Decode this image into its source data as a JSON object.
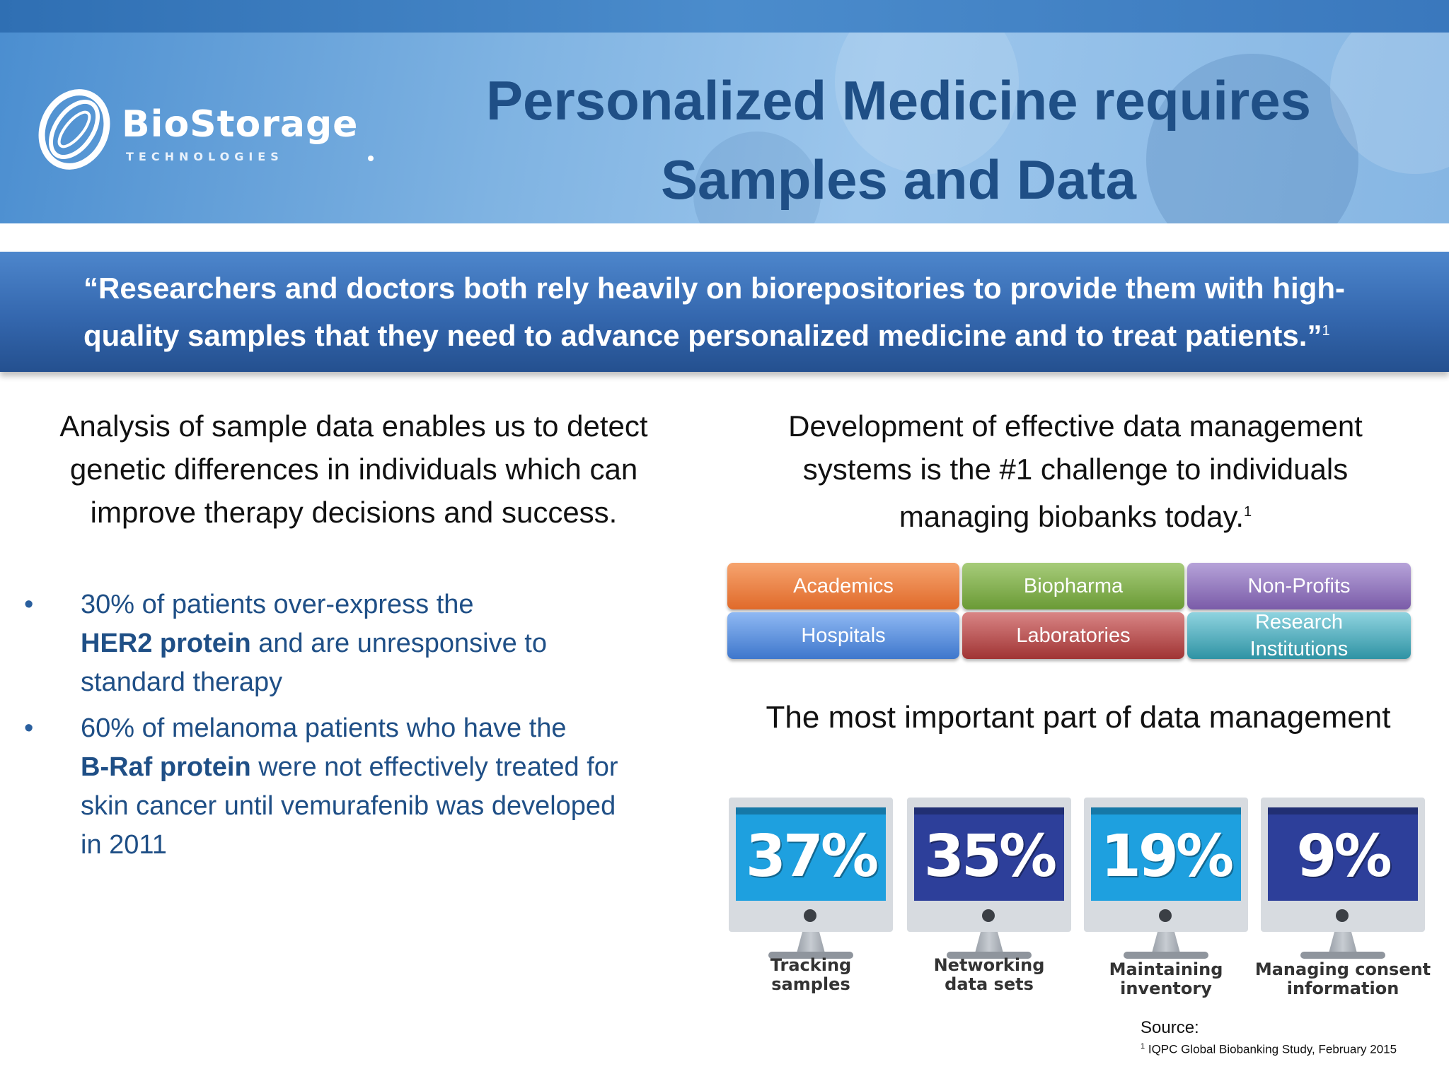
{
  "logo": {
    "name": "BioStorage",
    "sub": "TECHNOLOGIES"
  },
  "title": {
    "line1": "Personalized Medicine requires",
    "line2": "Samples and Data"
  },
  "quote": {
    "line1": "“Researchers and doctors both rely heavily on biorepositories to provide them with high-",
    "line2": "quality samples that they need to advance personalized medicine and to treat patients.”",
    "ref": "1"
  },
  "left": {
    "intro": {
      "line1": "Analysis of sample data enables us to detect",
      "line2": "genetic differences in individuals which can",
      "line3": "improve therapy decisions and success."
    },
    "bullet_marker": "•",
    "bullets": [
      {
        "l1": "30% of patients over-express the",
        "bold": "HER2 protein",
        "l2rest": " and are unresponsive to",
        "l3": "standard therapy"
      },
      {
        "l1": "60% of melanoma patients who have the",
        "bold": "B-Raf protein",
        "l2rest": " were not effectively treated for",
        "l3": "skin cancer until vemurafenib was developed",
        "l4": "in 2011"
      }
    ]
  },
  "right": {
    "intro": {
      "line1": "Development of effective data management",
      "line2": "systems is the #1 challenge to individuals",
      "line3": "managing biobanks today.",
      "ref": "1"
    },
    "groups": [
      {
        "label": "Academics",
        "color": "#e9793a"
      },
      {
        "label": "Biopharma",
        "color": "#76a83f"
      },
      {
        "label": "Non-Profits",
        "color": "#8466b2"
      },
      {
        "label": "Hospitals",
        "color": "#4d86d8"
      },
      {
        "label": "Laboratories",
        "color": "#b04444"
      },
      {
        "label_line1": "Research",
        "label_line2": "Institutions",
        "color": "#3fa3b4"
      }
    ],
    "most_important": "The most important part of data management",
    "monitors": [
      {
        "percent": "37%",
        "label_line1": "Tracking",
        "label_line2": "samples",
        "screen_color": "#1ea0df"
      },
      {
        "percent": "35%",
        "label_line1": "Networking",
        "label_line2": "data sets",
        "screen_color": "#2d3f9a"
      },
      {
        "percent": "19%",
        "label_line1": "Maintaining",
        "label_line2": "inventory",
        "screen_color": "#1ea0df"
      },
      {
        "percent": "9%",
        "label_line1": "Managing consent",
        "label_line2": "information",
        "screen_color": "#2d3f9a"
      }
    ]
  },
  "source": {
    "label": "Source:",
    "ref_marker": "1",
    "ref_text": " IQPC Global Biobanking Study, February 2015"
  }
}
